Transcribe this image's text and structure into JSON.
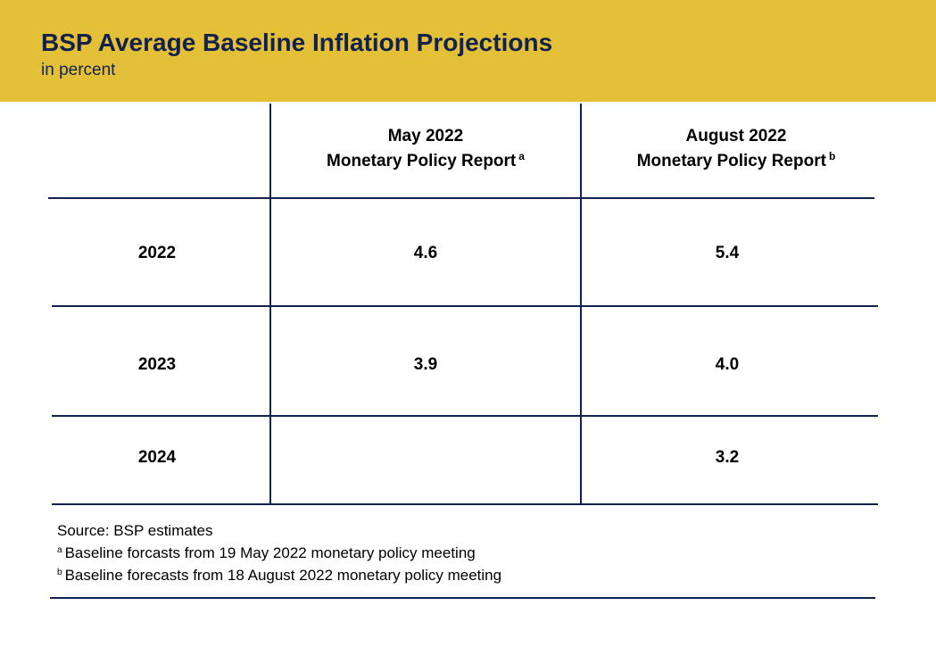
{
  "header": {
    "title": "BSP Average Baseline Inflation Projections",
    "subtitle": "in percent"
  },
  "chart_data": {
    "type": "table",
    "title": "BSP Average Baseline Inflation Projections",
    "subtitle": "in percent",
    "columns": [
      {
        "line1": "May 2022",
        "line2": "Monetary Policy Report",
        "footnote_mark": "a"
      },
      {
        "line1": "August 2022",
        "line2": "Monetary Policy Report",
        "footnote_mark": "b"
      }
    ],
    "rows": [
      {
        "year": "2022",
        "values": [
          "4.6",
          "5.4"
        ]
      },
      {
        "year": "2023",
        "values": [
          "3.9",
          "4.0"
        ]
      },
      {
        "year": "2024",
        "values": [
          "",
          "3.2"
        ]
      }
    ]
  },
  "notes": {
    "source": "Source: BSP estimates",
    "footnotes": [
      {
        "mark": "a",
        "text": "Baseline forcasts from 19 May 2022 monetary policy meeting"
      },
      {
        "mark": "b",
        "text": "Baseline forecasts from 18 August 2022 monetary policy meeting"
      }
    ]
  },
  "colors": {
    "header_bg": "#e3c038",
    "title_text": "#13224d",
    "rule": "#13224d"
  }
}
